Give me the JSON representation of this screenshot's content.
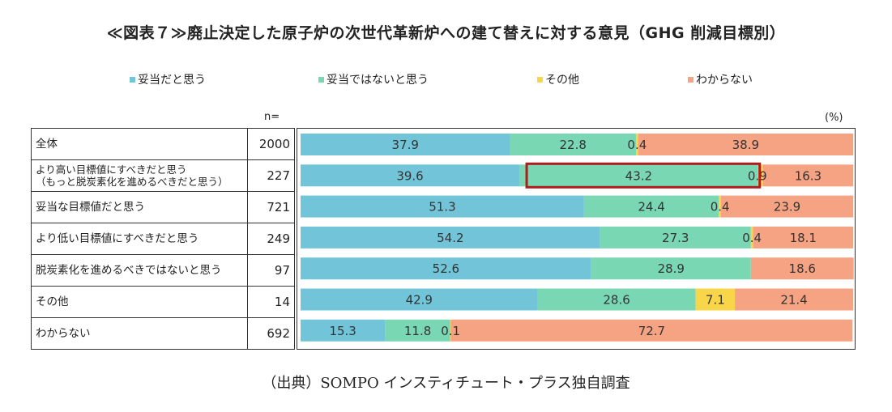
{
  "title": "≪図表７≫廃止決定した原子炉の次世代革新炉への建て替えに対する意見（GHG 削減目標別）",
  "n_label": "n=",
  "unit_label": "(%)",
  "source": "（出典）SOMPO インスティチュート・プラス独自調査",
  "colors": {
    "agree": "#72c5d8",
    "disagree": "#79d7b3",
    "other": "#f9d54a",
    "unknown": "#f6a383",
    "highlight": "#b01c1c"
  },
  "chart_data": {
    "type": "bar",
    "stacked": true,
    "orientation": "horizontal",
    "percent_scale": true,
    "legend_position": "top",
    "series": [
      {
        "name": "妥当だと思う",
        "values": [
          37.9,
          39.6,
          51.3,
          54.2,
          52.6,
          42.9,
          15.3
        ]
      },
      {
        "name": "妥当ではないと思う",
        "values": [
          22.8,
          43.2,
          24.4,
          27.3,
          28.9,
          28.6,
          11.8
        ]
      },
      {
        "name": "その他",
        "values": [
          0.4,
          0.9,
          0.4,
          0.4,
          0.0,
          7.1,
          0.1
        ]
      },
      {
        "name": "わからない",
        "values": [
          38.9,
          16.3,
          23.9,
          18.1,
          18.6,
          21.4,
          72.7
        ]
      }
    ],
    "value_labels": [
      [
        "37.9",
        "22.8",
        "0.4",
        "38.9"
      ],
      [
        "39.6",
        "43.2",
        "0.9",
        "16.3"
      ],
      [
        "51.3",
        "24.4",
        "0.4",
        "23.9"
      ],
      [
        "54.2",
        "27.3",
        "0.4",
        "18.1"
      ],
      [
        "52.6",
        "28.9",
        "",
        "18.6"
      ],
      [
        "42.9",
        "28.6",
        "7.1",
        "21.4"
      ],
      [
        "15.3",
        "11.8",
        "0.1",
        "72.7"
      ]
    ],
    "rows": [
      {
        "label_lines": [
          "全体"
        ],
        "n": "2000"
      },
      {
        "label_lines": [
          "より高い目標値にすべきだと思う",
          "（もっと脱炭素化を進めるべきだと思う）"
        ],
        "n": "227"
      },
      {
        "label_lines": [
          "妥当な目標値だと思う"
        ],
        "n": "721"
      },
      {
        "label_lines": [
          "より低い目標値にすべきだと思う"
        ],
        "n": "249"
      },
      {
        "label_lines": [
          "脱炭素化を進めるべきではないと思う"
        ],
        "n": "97"
      },
      {
        "label_lines": [
          "その他"
        ],
        "n": "14"
      },
      {
        "label_lines": [
          "わからない"
        ],
        "n": "692"
      }
    ],
    "highlight": {
      "row": 1,
      "series": 1
    }
  }
}
